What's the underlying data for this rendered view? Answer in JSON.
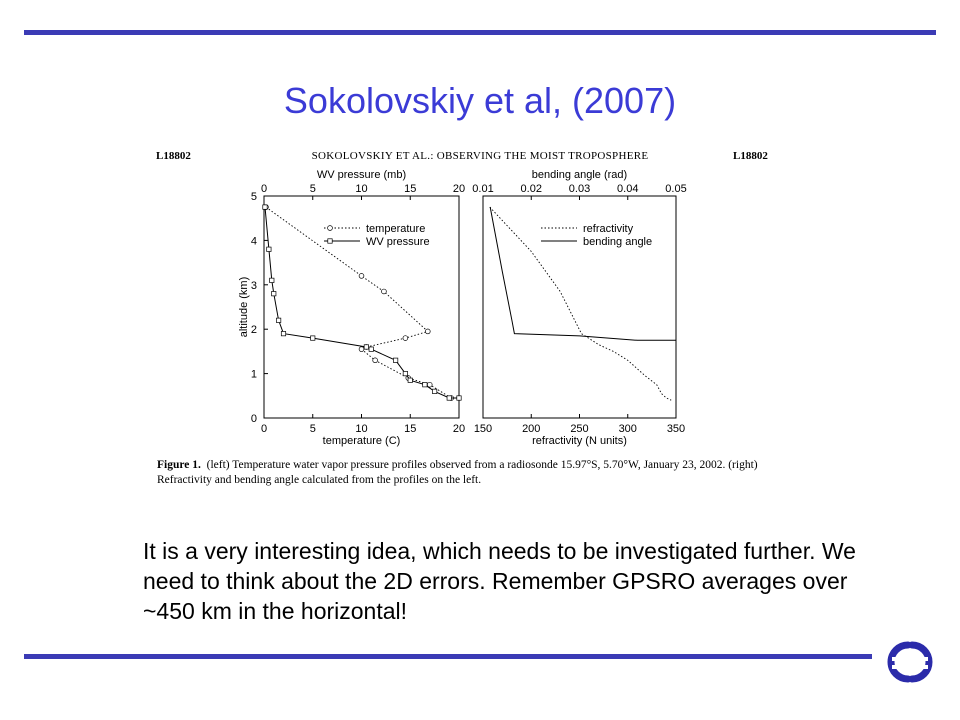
{
  "slide": {
    "title": "Sokolovskiy et al, (2007)",
    "body_text": "It is a very interesting idea, which needs to be investigated further. We need to think about the 2D errors.  Remember GPSRO averages over ~450 km in the horizontal!",
    "accent_color": "#3b3bb5",
    "title_color": "#3b3bd6"
  },
  "paper_header": {
    "left": "L18802",
    "center": "SOKOLOVSKIY ET AL.: OBSERVING THE MOIST TROPOSPHERE",
    "right": "L18802"
  },
  "caption": {
    "label": "Figure 1.",
    "text": "(left) Temperature water vapor pressure profiles observed from a radiosonde 15.97°S, 5.70°W, January 23, 2002. (right) Refractivity and bending angle calculated from the profiles on the left."
  },
  "logo": {
    "icon": "ecmwf-logo-icon",
    "color": "#2b2baa"
  },
  "chart_data": [
    {
      "type": "line",
      "panel": "left",
      "ylabel": "altitude (km)",
      "xlabel": "temperature (C)",
      "x2label": "WV pressure (mb)",
      "ylim": [
        0,
        5
      ],
      "xlim": [
        0,
        20
      ],
      "x2lim": [
        0,
        20
      ],
      "yticks": [
        "0",
        "1",
        "2",
        "3",
        "4",
        "5"
      ],
      "xticks": [
        "0",
        "5",
        "10",
        "15",
        "20"
      ],
      "x2ticks": [
        "0",
        "5",
        "10",
        "15",
        "20"
      ],
      "legend": "top-right",
      "series": [
        {
          "name": "temperature",
          "style": "dotted",
          "marker": "circle",
          "x": [
            0.2,
            10.0,
            12.3,
            16.8,
            14.5,
            10.5,
            10.0,
            11.4,
            14.8,
            17.0,
            19.2
          ],
          "y": [
            4.75,
            3.2,
            2.85,
            1.95,
            1.8,
            1.6,
            1.55,
            1.3,
            0.9,
            0.75,
            0.45
          ]
        },
        {
          "name": "WV pressure",
          "style": "solid",
          "marker": "square",
          "x": [
            0.1,
            0.5,
            0.8,
            1.0,
            1.5,
            2.0,
            5.0,
            10.5,
            11.0,
            13.5,
            14.5,
            15.0,
            16.5,
            17.5,
            19.0,
            20.0
          ],
          "y": [
            4.75,
            3.8,
            3.1,
            2.8,
            2.2,
            1.9,
            1.8,
            1.6,
            1.55,
            1.3,
            1.0,
            0.85,
            0.75,
            0.6,
            0.45,
            0.45
          ]
        }
      ]
    },
    {
      "type": "line",
      "panel": "right",
      "xlabel": "refractivity (N units)",
      "x2label": "bending angle (rad)",
      "ylim": [
        0,
        5
      ],
      "xlim": [
        150,
        350
      ],
      "x2lim": [
        0.01,
        0.05
      ],
      "xticks": [
        "150",
        "200",
        "250",
        "300",
        "350"
      ],
      "x2ticks": [
        "0.01",
        "0.02",
        "0.03",
        "0.04",
        "0.05"
      ],
      "legend": "top-right",
      "series": [
        {
          "name": "refractivity",
          "style": "dotted",
          "x": [
            157,
            200,
            230,
            252,
            270,
            285,
            300,
            318,
            330,
            335,
            340,
            345
          ],
          "y": [
            4.75,
            3.75,
            2.85,
            1.9,
            1.65,
            1.5,
            1.3,
            0.95,
            0.75,
            0.55,
            0.45,
            0.4
          ]
        },
        {
          "name": "bending angle",
          "style": "solid",
          "x": [
            0.0115,
            0.014,
            0.016,
            0.0165,
            0.03,
            0.042,
            0.05
          ],
          "y": [
            4.75,
            3.3,
            2.2,
            1.9,
            1.85,
            1.75,
            1.75
          ]
        }
      ]
    }
  ]
}
